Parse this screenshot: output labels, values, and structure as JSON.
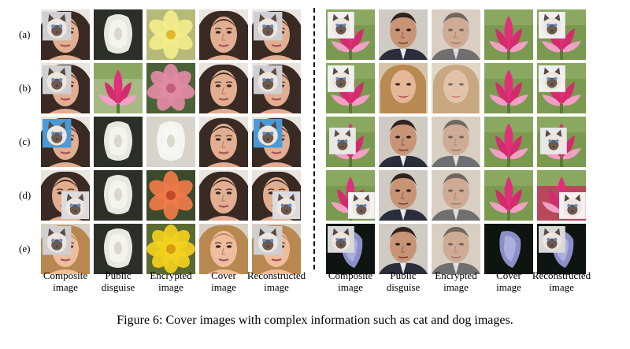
{
  "figure": {
    "row_labels": [
      "(a)",
      "(b)",
      "(c)",
      "(d)",
      "(e)"
    ],
    "left_column_labels": [
      [
        "Composite",
        "image"
      ],
      [
        "Public",
        "disguise"
      ],
      [
        "Encrypted",
        "image"
      ],
      [
        "Cover",
        "image"
      ],
      [
        "Reconstructed",
        "image"
      ]
    ],
    "right_column_labels": [
      [
        "Composite",
        "image"
      ],
      [
        "Public",
        "disguise"
      ],
      [
        "Encrypted",
        "image"
      ],
      [
        "Cover",
        "image"
      ],
      [
        "Reconstructed",
        "image"
      ]
    ],
    "caption": "Figure 6: Cover images with complex information such as cat and dog images.",
    "left_grid": [
      [
        "face_cat_tl",
        "white_flower",
        "yellow_flower",
        "face",
        "face_cat_tl"
      ],
      [
        "face_cat_tl",
        "pink_flower",
        "pink_rose",
        "face",
        "face_cat_tl"
      ],
      [
        "face_cat_blue_tl",
        "white_flower",
        "white_flower_light",
        "face",
        "face_cat_blue_tl"
      ],
      [
        "face_cat_br",
        "white_flower",
        "orange_flower",
        "face",
        "face_cat_br"
      ],
      [
        "face2_cat_tl",
        "white_flower",
        "yellow_flower2",
        "face2",
        "face2_cat_tl"
      ]
    ],
    "right_grid": [
      [
        "lotus_cat_tl",
        "man_face",
        "man_face_blur",
        "lotus",
        "lotus_cat_tl"
      ],
      [
        "lotus_cat_tl",
        "woman_face",
        "woman_face_blur",
        "lotus",
        "lotus_cat_tl"
      ],
      [
        "lotus_cat_ml",
        "man_face",
        "man_face_blur",
        "lotus",
        "lotus_cat_ml"
      ],
      [
        "lotus_cat_br",
        "man_face",
        "man_face_blur",
        "lotus",
        "lotus_cat_br_red"
      ],
      [
        "dark_cat",
        "man_face",
        "man_face_blur",
        "dark_flower",
        "dark_cat"
      ]
    ]
  }
}
